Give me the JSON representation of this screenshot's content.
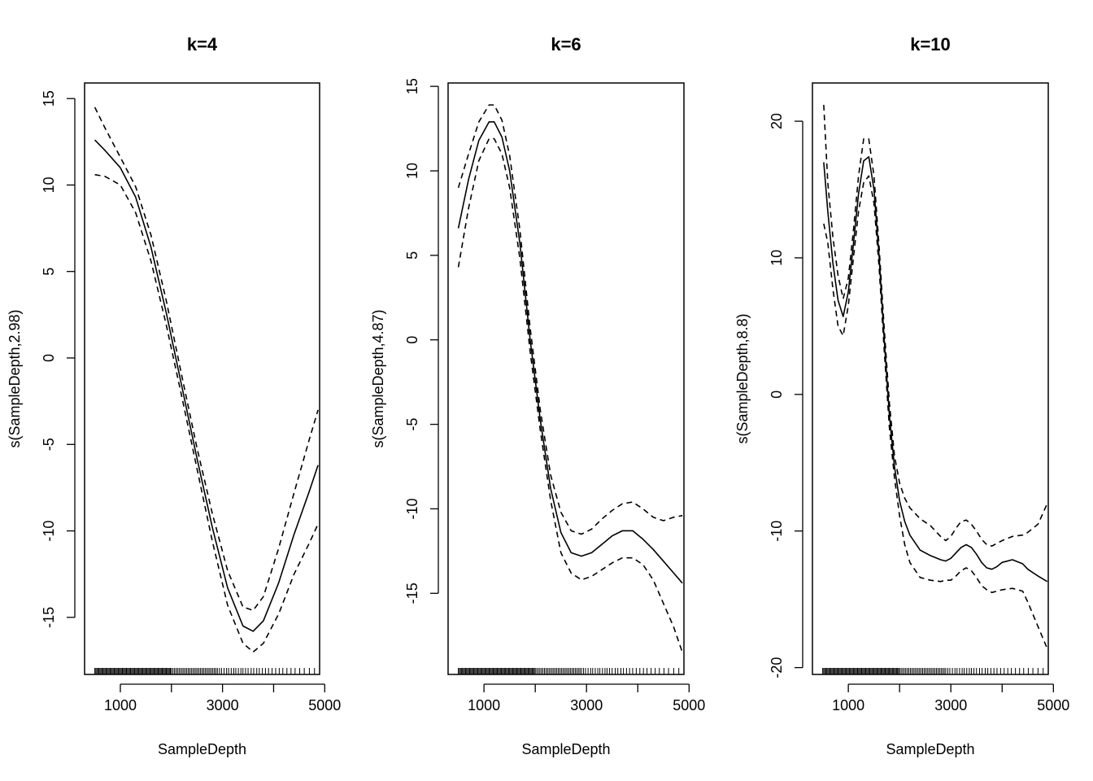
{
  "chart_data": [
    {
      "type": "line",
      "title": "k=4",
      "xlabel": "SampleDepth",
      "ylabel": "s(SampleDepth,2.98)",
      "xlim": [
        300,
        4900
      ],
      "ylim": [
        -18.3,
        15.9
      ],
      "xticks": [
        1000,
        2000,
        3000,
        4000,
        5000
      ],
      "xtick_labels": [
        "1000",
        "",
        "3000",
        "",
        "5000"
      ],
      "yticks": [
        15,
        10,
        5,
        0,
        -5,
        -10,
        -15
      ],
      "ytick_labels": [
        "15",
        "10",
        "5",
        "0",
        "-5",
        "-10",
        "-15"
      ],
      "x": [
        500,
        700,
        1000,
        1300,
        1600,
        1900,
        2200,
        2500,
        2800,
        3100,
        3400,
        3600,
        3800,
        4100,
        4400,
        4700,
        4870
      ],
      "series": [
        {
          "name": "fit",
          "style": "solid",
          "values": [
            12.6,
            12.0,
            11.0,
            9.3,
            6.4,
            2.6,
            -1.6,
            -5.8,
            -9.8,
            -13.3,
            -15.5,
            -15.8,
            -15.2,
            -13.0,
            -10.2,
            -7.7,
            -6.2
          ]
        },
        {
          "name": "upper",
          "style": "dashed",
          "values": [
            14.5,
            13.3,
            11.6,
            9.9,
            7.1,
            3.3,
            -1.0,
            -5.2,
            -9.0,
            -12.3,
            -14.4,
            -14.6,
            -13.8,
            -11.0,
            -7.8,
            -4.7,
            -3.0
          ]
        },
        {
          "name": "lower",
          "style": "dashed",
          "values": [
            10.6,
            10.5,
            10.0,
            8.4,
            5.6,
            1.9,
            -2.2,
            -6.4,
            -10.6,
            -14.3,
            -16.5,
            -17.0,
            -16.5,
            -14.8,
            -12.5,
            -10.7,
            -9.6
          ]
        }
      ],
      "rug": [
        500,
        520,
        540,
        560,
        580,
        600,
        620,
        640,
        660,
        680,
        700,
        720,
        740,
        760,
        780,
        800,
        820,
        840,
        860,
        880,
        900,
        920,
        940,
        960,
        980,
        1000,
        1020,
        1040,
        1060,
        1080,
        1100,
        1120,
        1140,
        1160,
        1180,
        1200,
        1220,
        1240,
        1260,
        1280,
        1300,
        1320,
        1340,
        1360,
        1380,
        1400,
        1420,
        1440,
        1460,
        1480,
        1500,
        1520,
        1540,
        1560,
        1580,
        1600,
        1620,
        1640,
        1660,
        1680,
        1700,
        1720,
        1740,
        1760,
        1780,
        1800,
        1820,
        1840,
        1860,
        1880,
        1900,
        1920,
        1940,
        1960,
        1980,
        2000,
        2030,
        2060,
        2090,
        2120,
        2150,
        2180,
        2210,
        2240,
        2270,
        2300,
        2330,
        2360,
        2390,
        2420,
        2450,
        2480,
        2510,
        2540,
        2570,
        2600,
        2630,
        2660,
        2690,
        2720,
        2750,
        2780,
        2810,
        2840,
        2870,
        2900,
        2940,
        2980,
        3030,
        3080,
        3120,
        3170,
        3220,
        3260,
        3310,
        3360,
        3400,
        3450,
        3500,
        3560,
        3610,
        3670,
        3720,
        3780,
        3840,
        3900,
        3970,
        4040,
        4110,
        4180,
        4260,
        4340,
        4420,
        4510,
        4600,
        4700,
        4800
      ]
    },
    {
      "type": "line",
      "title": "k=6",
      "xlabel": "SampleDepth",
      "ylabel": "s(SampleDepth,4.87)",
      "xlim": [
        300,
        4900
      ],
      "ylim": [
        -19.8,
        15.2
      ],
      "xticks": [
        1000,
        2000,
        3000,
        4000,
        5000
      ],
      "xtick_labels": [
        "1000",
        "",
        "3000",
        "",
        "5000"
      ],
      "yticks": [
        15,
        10,
        5,
        0,
        -5,
        -10,
        -15
      ],
      "ytick_labels": [
        "15",
        "10",
        "5",
        "0",
        "-5",
        "-10",
        "-15"
      ],
      "x": [
        500,
        700,
        900,
        1100,
        1200,
        1350,
        1500,
        1700,
        1900,
        2100,
        2300,
        2500,
        2700,
        2900,
        3100,
        3300,
        3500,
        3700,
        3900,
        4100,
        4300,
        4500,
        4700,
        4870
      ],
      "series": [
        {
          "name": "fit",
          "style": "solid",
          "values": [
            6.6,
            9.5,
            11.8,
            12.9,
            12.9,
            12.0,
            10.0,
            5.7,
            0.0,
            -4.8,
            -8.8,
            -11.4,
            -12.6,
            -12.8,
            -12.6,
            -12.1,
            -11.6,
            -11.3,
            -11.3,
            -11.8,
            -12.4,
            -13.1,
            -13.8,
            -14.4
          ]
        },
        {
          "name": "upper",
          "style": "dashed",
          "values": [
            9.0,
            11.0,
            12.9,
            13.9,
            13.9,
            13.0,
            10.9,
            6.5,
            0.7,
            -4.2,
            -8.0,
            -10.2,
            -11.3,
            -11.5,
            -11.2,
            -10.6,
            -10.1,
            -9.7,
            -9.6,
            -10.0,
            -10.5,
            -10.7,
            -10.5,
            -10.4
          ]
        },
        {
          "name": "lower",
          "style": "dashed",
          "values": [
            4.3,
            7.8,
            10.6,
            11.9,
            11.9,
            11.0,
            9.0,
            4.8,
            -0.7,
            -5.4,
            -9.5,
            -12.6,
            -13.8,
            -14.2,
            -14.0,
            -13.6,
            -13.2,
            -12.9,
            -12.9,
            -13.3,
            -14.2,
            -15.6,
            -17.0,
            -18.5
          ]
        }
      ],
      "rug": [
        500,
        520,
        540,
        560,
        580,
        600,
        620,
        640,
        660,
        680,
        700,
        720,
        740,
        760,
        780,
        800,
        820,
        840,
        860,
        880,
        900,
        920,
        940,
        960,
        980,
        1000,
        1020,
        1040,
        1060,
        1080,
        1100,
        1120,
        1140,
        1160,
        1180,
        1200,
        1220,
        1240,
        1260,
        1280,
        1300,
        1320,
        1340,
        1360,
        1380,
        1400,
        1420,
        1440,
        1460,
        1480,
        1500,
        1520,
        1540,
        1560,
        1580,
        1600,
        1620,
        1640,
        1660,
        1680,
        1700,
        1720,
        1740,
        1760,
        1780,
        1800,
        1820,
        1840,
        1860,
        1880,
        1900,
        1920,
        1940,
        1960,
        1980,
        2000,
        2030,
        2060,
        2090,
        2120,
        2150,
        2180,
        2210,
        2240,
        2270,
        2300,
        2330,
        2360,
        2390,
        2420,
        2450,
        2480,
        2510,
        2540,
        2570,
        2600,
        2630,
        2660,
        2690,
        2720,
        2750,
        2780,
        2810,
        2840,
        2870,
        2900,
        2940,
        2980,
        3030,
        3080,
        3120,
        3170,
        3220,
        3260,
        3310,
        3360,
        3400,
        3450,
        3500,
        3560,
        3610,
        3670,
        3720,
        3780,
        3840,
        3900,
        3970,
        4040,
        4110,
        4180,
        4260,
        4340,
        4420,
        4510,
        4600,
        4700,
        4800
      ]
    },
    {
      "type": "line",
      "title": "k=10",
      "xlabel": "SampleDepth",
      "ylabel": "s(SampleDepth,8.8)",
      "xlim": [
        300,
        4900
      ],
      "ylim": [
        -20.5,
        22.8
      ],
      "xticks": [
        1000,
        2000,
        3000,
        4000,
        5000
      ],
      "xtick_labels": [
        "1000",
        "",
        "3000",
        "",
        "5000"
      ],
      "yticks": [
        20,
        10,
        0,
        -10,
        -20
      ],
      "ytick_labels": [
        "20",
        "10",
        "0",
        "-10",
        "-20"
      ],
      "x": [
        520,
        600,
        700,
        800,
        900,
        1000,
        1100,
        1200,
        1300,
        1400,
        1500,
        1600,
        1700,
        1800,
        1900,
        2000,
        2100,
        2200,
        2400,
        2600,
        2800,
        2900,
        3000,
        3100,
        3200,
        3300,
        3400,
        3500,
        3600,
        3700,
        3800,
        3900,
        4000,
        4200,
        4400,
        4500,
        4700,
        4880
      ],
      "series": [
        {
          "name": "fit",
          "style": "solid",
          "values": [
            17.0,
            13.4,
            9.6,
            6.9,
            5.7,
            7.5,
            11.0,
            14.7,
            17.1,
            17.4,
            15.0,
            10.1,
            4.0,
            -1.5,
            -5.3,
            -7.8,
            -9.3,
            -10.3,
            -11.4,
            -11.8,
            -12.1,
            -12.2,
            -12.0,
            -11.6,
            -11.2,
            -11.0,
            -11.2,
            -11.7,
            -12.3,
            -12.7,
            -12.8,
            -12.6,
            -12.3,
            -12.1,
            -12.4,
            -12.8,
            -13.3,
            -13.7
          ]
        },
        {
          "name": "upper",
          "style": "dashed",
          "values": [
            21.2,
            15.5,
            11.5,
            8.7,
            7.0,
            8.5,
            12.0,
            16.0,
            18.7,
            18.7,
            16.0,
            10.8,
            4.8,
            -0.6,
            -4.5,
            -6.5,
            -7.6,
            -8.3,
            -9.1,
            -9.6,
            -10.4,
            -10.7,
            -10.4,
            -9.8,
            -9.3,
            -9.2,
            -9.5,
            -10.0,
            -10.6,
            -11.0,
            -11.1,
            -10.9,
            -10.7,
            -10.4,
            -10.3,
            -10.1,
            -9.5,
            -8.0
          ]
        },
        {
          "name": "lower",
          "style": "dashed",
          "values": [
            12.5,
            11.1,
            7.7,
            5.0,
            4.3,
            6.5,
            10.0,
            13.4,
            15.5,
            16.0,
            14.0,
            9.3,
            3.2,
            -2.4,
            -6.1,
            -8.9,
            -11.0,
            -12.3,
            -13.4,
            -13.6,
            -13.7,
            -13.6,
            -13.6,
            -13.3,
            -12.9,
            -12.7,
            -12.9,
            -13.4,
            -14.0,
            -14.3,
            -14.5,
            -14.4,
            -14.3,
            -14.2,
            -14.4,
            -15.2,
            -17.0,
            -18.6
          ]
        }
      ],
      "rug": [
        500,
        520,
        540,
        560,
        580,
        600,
        620,
        640,
        660,
        680,
        700,
        720,
        740,
        760,
        780,
        800,
        820,
        840,
        860,
        880,
        900,
        920,
        940,
        960,
        980,
        1000,
        1020,
        1040,
        1060,
        1080,
        1100,
        1120,
        1140,
        1160,
        1180,
        1200,
        1220,
        1240,
        1260,
        1280,
        1300,
        1320,
        1340,
        1360,
        1380,
        1400,
        1420,
        1440,
        1460,
        1480,
        1500,
        1520,
        1540,
        1560,
        1580,
        1600,
        1620,
        1640,
        1660,
        1680,
        1700,
        1720,
        1740,
        1760,
        1780,
        1800,
        1820,
        1840,
        1860,
        1880,
        1900,
        1920,
        1940,
        1960,
        1980,
        2000,
        2030,
        2060,
        2090,
        2120,
        2150,
        2180,
        2210,
        2240,
        2270,
        2300,
        2330,
        2360,
        2390,
        2420,
        2450,
        2480,
        2510,
        2540,
        2570,
        2600,
        2630,
        2660,
        2690,
        2720,
        2750,
        2780,
        2810,
        2840,
        2870,
        2900,
        2940,
        2980,
        3030,
        3080,
        3120,
        3170,
        3220,
        3260,
        3310,
        3360,
        3400,
        3450,
        3500,
        3560,
        3610,
        3670,
        3720,
        3780,
        3840,
        3900,
        3970,
        4040,
        4110,
        4180,
        4260,
        4340,
        4420,
        4510,
        4600,
        4700,
        4800
      ]
    }
  ]
}
